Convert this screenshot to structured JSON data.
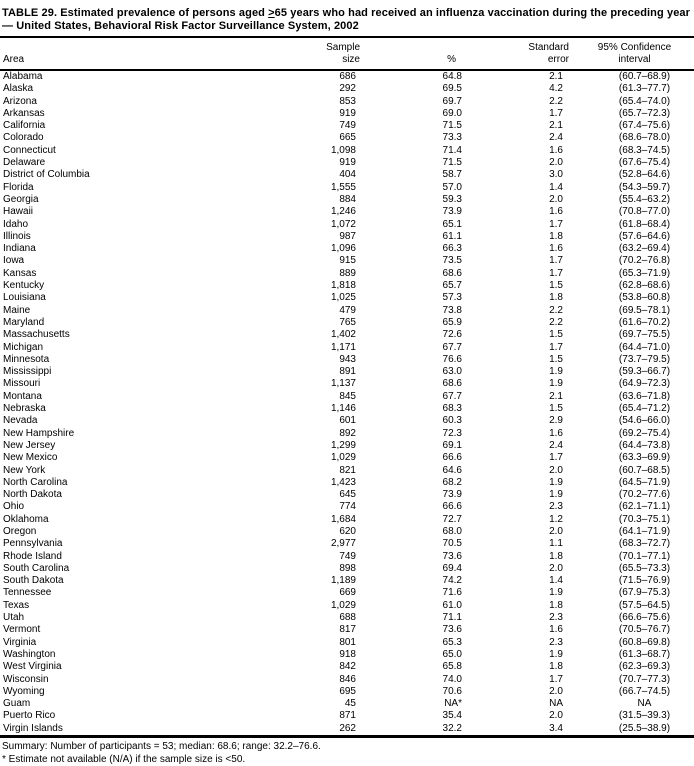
{
  "colors": {
    "text": "#000000",
    "background": "#ffffff"
  },
  "title": {
    "line1_pre": "TABLE 29. Estimated prevalence of persons aged ",
    "line1_geq": ">",
    "line1_post": "65 years who had received an influenza vaccination during the preceding year",
    "line2": "— United States, Behavioral Risk Factor Surveillance System, 2002"
  },
  "table": {
    "columns": {
      "area": "Area",
      "sample_line1": "Sample",
      "sample_line2": "size",
      "pct": "%",
      "se_line1": "Standard",
      "se_line2": "error",
      "ci_line1": "95% Confidence",
      "ci_line2": "interval"
    },
    "rows": [
      {
        "area": "Alabama",
        "sample": "686",
        "pct": "64.8",
        "se": "2.1",
        "ci": "(60.7–68.9)"
      },
      {
        "area": "Alaska",
        "sample": "292",
        "pct": "69.5",
        "se": "4.2",
        "ci": "(61.3–77.7)"
      },
      {
        "area": "Arizona",
        "sample": "853",
        "pct": "69.7",
        "se": "2.2",
        "ci": "(65.4–74.0)"
      },
      {
        "area": "Arkansas",
        "sample": "919",
        "pct": "69.0",
        "se": "1.7",
        "ci": "(65.7–72.3)"
      },
      {
        "area": "California",
        "sample": "749",
        "pct": "71.5",
        "se": "2.1",
        "ci": "(67.4–75.6)"
      },
      {
        "area": "Colorado",
        "sample": "665",
        "pct": "73.3",
        "se": "2.4",
        "ci": "(68.6–78.0)"
      },
      {
        "area": "Connecticut",
        "sample": "1,098",
        "pct": "71.4",
        "se": "1.6",
        "ci": "(68.3–74.5)"
      },
      {
        "area": "Delaware",
        "sample": "919",
        "pct": "71.5",
        "se": "2.0",
        "ci": "(67.6–75.4)"
      },
      {
        "area": "District of Columbia",
        "sample": "404",
        "pct": "58.7",
        "se": "3.0",
        "ci": "(52.8–64.6)"
      },
      {
        "area": "Florida",
        "sample": "1,555",
        "pct": "57.0",
        "se": "1.4",
        "ci": "(54.3–59.7)"
      },
      {
        "area": "Georgia",
        "sample": "884",
        "pct": "59.3",
        "se": "2.0",
        "ci": "(55.4–63.2)"
      },
      {
        "area": "Hawaii",
        "sample": "1,246",
        "pct": "73.9",
        "se": "1.6",
        "ci": "(70.8–77.0)"
      },
      {
        "area": "Idaho",
        "sample": "1,072",
        "pct": "65.1",
        "se": "1.7",
        "ci": "(61.8–68.4)"
      },
      {
        "area": "Illinois",
        "sample": "987",
        "pct": "61.1",
        "se": "1.8",
        "ci": "(57.6–64.6)"
      },
      {
        "area": "Indiana",
        "sample": "1,096",
        "pct": "66.3",
        "se": "1.6",
        "ci": "(63.2–69.4)"
      },
      {
        "area": "Iowa",
        "sample": "915",
        "pct": "73.5",
        "se": "1.7",
        "ci": "(70.2–76.8)"
      },
      {
        "area": "Kansas",
        "sample": "889",
        "pct": "68.6",
        "se": "1.7",
        "ci": "(65.3–71.9)"
      },
      {
        "area": "Kentucky",
        "sample": "1,818",
        "pct": "65.7",
        "se": "1.5",
        "ci": "(62.8–68.6)"
      },
      {
        "area": "Louisiana",
        "sample": "1,025",
        "pct": "57.3",
        "se": "1.8",
        "ci": "(53.8–60.8)"
      },
      {
        "area": "Maine",
        "sample": "479",
        "pct": "73.8",
        "se": "2.2",
        "ci": "(69.5–78.1)"
      },
      {
        "area": "Maryland",
        "sample": "765",
        "pct": "65.9",
        "se": "2.2",
        "ci": "(61.6–70.2)"
      },
      {
        "area": "Massachusetts",
        "sample": "1,402",
        "pct": "72.6",
        "se": "1.5",
        "ci": "(69.7–75.5)"
      },
      {
        "area": "Michigan",
        "sample": "1,171",
        "pct": "67.7",
        "se": "1.7",
        "ci": "(64.4–71.0)"
      },
      {
        "area": "Minnesota",
        "sample": "943",
        "pct": "76.6",
        "se": "1.5",
        "ci": "(73.7–79.5)"
      },
      {
        "area": "Mississippi",
        "sample": "891",
        "pct": "63.0",
        "se": "1.9",
        "ci": "(59.3–66.7)"
      },
      {
        "area": "Missouri",
        "sample": "1,137",
        "pct": "68.6",
        "se": "1.9",
        "ci": "(64.9–72.3)"
      },
      {
        "area": "Montana",
        "sample": "845",
        "pct": "67.7",
        "se": "2.1",
        "ci": "(63.6–71.8)"
      },
      {
        "area": "Nebraska",
        "sample": "1,146",
        "pct": "68.3",
        "se": "1.5",
        "ci": "(65.4–71.2)"
      },
      {
        "area": "Nevada",
        "sample": "601",
        "pct": "60.3",
        "se": "2.9",
        "ci": "(54.6–66.0)"
      },
      {
        "area": "New Hampshire",
        "sample": "892",
        "pct": "72.3",
        "se": "1.6",
        "ci": "(69.2–75.4)"
      },
      {
        "area": "New Jersey",
        "sample": "1,299",
        "pct": "69.1",
        "se": "2.4",
        "ci": "(64.4–73.8)"
      },
      {
        "area": "New Mexico",
        "sample": "1,029",
        "pct": "66.6",
        "se": "1.7",
        "ci": "(63.3–69.9)"
      },
      {
        "area": "New York",
        "sample": "821",
        "pct": "64.6",
        "se": "2.0",
        "ci": "(60.7–68.5)"
      },
      {
        "area": "North Carolina",
        "sample": "1,423",
        "pct": "68.2",
        "se": "1.9",
        "ci": "(64.5–71.9)"
      },
      {
        "area": "North Dakota",
        "sample": "645",
        "pct": "73.9",
        "se": "1.9",
        "ci": "(70.2–77.6)"
      },
      {
        "area": "Ohio",
        "sample": "774",
        "pct": "66.6",
        "se": "2.3",
        "ci": "(62.1–71.1)"
      },
      {
        "area": "Oklahoma",
        "sample": "1,684",
        "pct": "72.7",
        "se": "1.2",
        "ci": "(70.3–75.1)"
      },
      {
        "area": "Oregon",
        "sample": "620",
        "pct": "68.0",
        "se": "2.0",
        "ci": "(64.1–71.9)"
      },
      {
        "area": "Pennsylvania",
        "sample": "2,977",
        "pct": "70.5",
        "se": "1.1",
        "ci": "(68.3–72.7)"
      },
      {
        "area": "Rhode Island",
        "sample": "749",
        "pct": "73.6",
        "se": "1.8",
        "ci": "(70.1–77.1)"
      },
      {
        "area": "South Carolina",
        "sample": "898",
        "pct": "69.4",
        "se": "2.0",
        "ci": "(65.5–73.3)"
      },
      {
        "area": "South Dakota",
        "sample": "1,189",
        "pct": "74.2",
        "se": "1.4",
        "ci": "(71.5–76.9)"
      },
      {
        "area": "Tennessee",
        "sample": "669",
        "pct": "71.6",
        "se": "1.9",
        "ci": "(67.9–75.3)"
      },
      {
        "area": "Texas",
        "sample": "1,029",
        "pct": "61.0",
        "se": "1.8",
        "ci": "(57.5–64.5)"
      },
      {
        "area": "Utah",
        "sample": "688",
        "pct": "71.1",
        "se": "2.3",
        "ci": "(66.6–75.6)"
      },
      {
        "area": "Vermont",
        "sample": "817",
        "pct": "73.6",
        "se": "1.6",
        "ci": "(70.5–76.7)"
      },
      {
        "area": "Virginia",
        "sample": "801",
        "pct": "65.3",
        "se": "2.3",
        "ci": "(60.8–69.8)"
      },
      {
        "area": "Washington",
        "sample": "918",
        "pct": "65.0",
        "se": "1.9",
        "ci": "(61.3–68.7)"
      },
      {
        "area": "West Virginia",
        "sample": "842",
        "pct": "65.8",
        "se": "1.8",
        "ci": "(62.3–69.3)"
      },
      {
        "area": "Wisconsin",
        "sample": "846",
        "pct": "74.0",
        "se": "1.7",
        "ci": "(70.7–77.3)"
      },
      {
        "area": "Wyoming",
        "sample": "695",
        "pct": "70.6",
        "se": "2.0",
        "ci": "(66.7–74.5)"
      },
      {
        "area": "Guam",
        "sample": "45",
        "pct": "NA*",
        "se": "NA",
        "ci": "NA"
      },
      {
        "area": "Puerto Rico",
        "sample": "871",
        "pct": "35.4",
        "se": "2.0",
        "ci": "(31.5–39.3)"
      },
      {
        "area": "Virgin Islands",
        "sample": "262",
        "pct": "32.2",
        "se": "3.4",
        "ci": "(25.5–38.9)"
      }
    ]
  },
  "footer": {
    "summary": "Summary: Number of participants = 53; median: 68.6; range: 32.2–76.6.",
    "footnote": "* Estimate not available (N/A) if the sample size is <50."
  }
}
